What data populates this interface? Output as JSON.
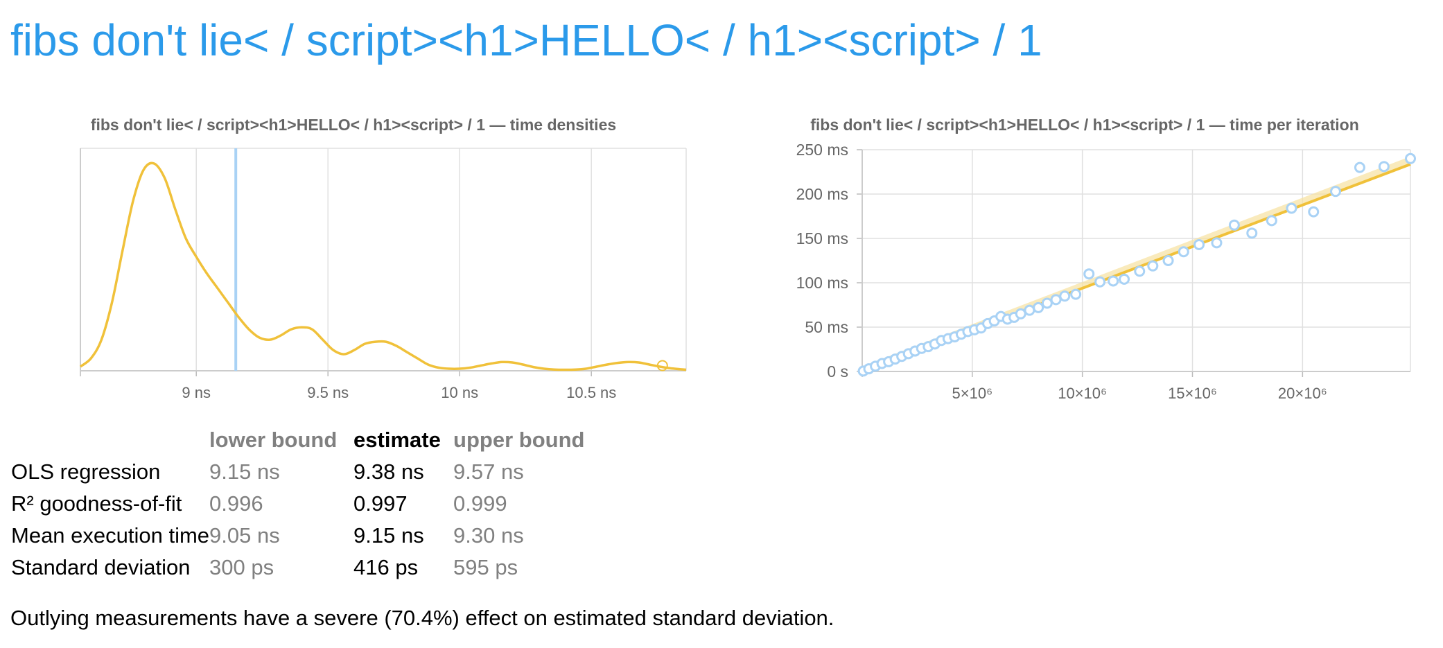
{
  "page": {
    "title": "fibs don't lie< / script><h1>HELLO< / h1><script> / 1",
    "outlier_note": "Outlying measurements have a severe (70.4%) effect on estimated standard deviation."
  },
  "colors": {
    "title": "#2b9aea",
    "density_line": "#f0c13a",
    "mean_marker": "#a9d2f5",
    "regression_line": "#f0c13a",
    "points": "#a9d2f5",
    "grid": "#e0e0e0",
    "axis_text": "#666666"
  },
  "chart_data": [
    {
      "type": "line",
      "title": "fibs don't lie< / script><h1>HELLO< / h1><script> / 1 — time densities",
      "xlabel": "",
      "ylabel": "",
      "x_unit": "ns",
      "xlim": [
        8.56,
        10.86
      ],
      "x_ticks": [
        9,
        9.5,
        10,
        10.5
      ],
      "x_tick_labels": [
        "9 ns",
        "9.5 ns",
        "10 ns",
        "10.5 ns"
      ],
      "y_axis_labels": false,
      "grid": true,
      "series": [
        {
          "x": [
            8.56,
            8.6,
            8.64,
            8.68,
            8.72,
            8.76,
            8.8,
            8.84,
            8.88,
            8.92,
            8.96,
            9.0,
            9.04,
            9.08,
            9.12,
            9.16,
            9.2,
            9.24,
            9.28,
            9.32,
            9.36,
            9.4,
            9.44,
            9.48,
            9.52,
            9.56,
            9.6,
            9.64,
            9.68,
            9.72,
            9.76,
            9.8,
            9.84,
            9.88,
            9.92,
            9.96,
            10.0,
            10.04,
            10.08,
            10.12,
            10.16,
            10.2,
            10.24,
            10.28,
            10.32,
            10.36,
            10.4,
            10.44,
            10.48,
            10.52,
            10.56,
            10.6,
            10.64,
            10.68,
            10.72,
            10.76,
            10.8,
            10.86
          ],
          "y": [
            0.02,
            0.06,
            0.15,
            0.33,
            0.58,
            0.82,
            0.97,
            1.0,
            0.93,
            0.78,
            0.64,
            0.55,
            0.47,
            0.4,
            0.33,
            0.26,
            0.2,
            0.16,
            0.15,
            0.17,
            0.2,
            0.21,
            0.2,
            0.15,
            0.1,
            0.08,
            0.1,
            0.13,
            0.14,
            0.14,
            0.12,
            0.09,
            0.06,
            0.03,
            0.015,
            0.01,
            0.01,
            0.015,
            0.025,
            0.035,
            0.042,
            0.04,
            0.03,
            0.018,
            0.01,
            0.006,
            0.005,
            0.006,
            0.01,
            0.02,
            0.03,
            0.038,
            0.042,
            0.04,
            0.03,
            0.02,
            0.012,
            0.005
          ]
        }
      ],
      "mean_marker_x": 9.15,
      "outlier_point": {
        "x": 10.77,
        "y": 0.025
      }
    },
    {
      "type": "scatter",
      "title": "fibs don't lie< / script><h1>HELLO< / h1><script> / 1 — time per iteration",
      "xlabel": "",
      "ylabel": "",
      "xlim": [
        0,
        24900000
      ],
      "ylim": [
        0,
        250
      ],
      "x_ticks": [
        5000000,
        10000000,
        15000000,
        20000000
      ],
      "x_tick_labels": [
        "5×10⁶",
        "10×10⁶",
        "15×10⁶",
        "20×10⁶"
      ],
      "y_ticks": [
        0,
        50,
        100,
        150,
        200,
        250
      ],
      "y_tick_labels": [
        "0 s",
        "50 ms",
        "100 ms",
        "150 ms",
        "200 ms",
        "250 ms"
      ],
      "grid": true,
      "regression": {
        "slope_ns_per_iter": 9.38,
        "x_range": [
          0,
          24900000
        ]
      },
      "points": {
        "x": [
          50000,
          300000,
          600000,
          900000,
          1200000,
          1500000,
          1800000,
          2100000,
          2400000,
          2700000,
          3000000,
          3300000,
          3600000,
          3900000,
          4200000,
          4500000,
          4800000,
          5100000,
          5400000,
          5700000,
          6000000,
          6300000,
          6600000,
          6900000,
          7200000,
          7600000,
          8000000,
          8400000,
          8800000,
          9200000,
          9700000,
          10300000,
          10800000,
          11400000,
          11900000,
          12600000,
          13200000,
          13900000,
          14600000,
          15300000,
          16100000,
          16900000,
          17700000,
          18600000,
          19500000,
          20500000,
          21500000,
          22600000,
          23700000,
          24900000
        ],
        "y": [
          0.5,
          3,
          6,
          9,
          11,
          14,
          17,
          20,
          23,
          26,
          28,
          31,
          35,
          37,
          39,
          42,
          45,
          47,
          49,
          54,
          57,
          62,
          59,
          61,
          65,
          69,
          72,
          77,
          81,
          85,
          87,
          110,
          101,
          102,
          104,
          113,
          119,
          125,
          135,
          143,
          145,
          165,
          156,
          170,
          184,
          180,
          203,
          230,
          231,
          240
        ]
      }
    }
  ],
  "stats": {
    "headers": {
      "name": "",
      "lower": "lower bound",
      "estimate": "estimate",
      "upper": "upper bound"
    },
    "rows": [
      {
        "name": "OLS regression",
        "lower": "9.15 ns",
        "estimate": "9.38 ns",
        "upper": "9.57 ns"
      },
      {
        "name": "R² goodness-of-fit",
        "lower": "0.996",
        "estimate": "0.997",
        "upper": "0.999"
      },
      {
        "name": "Mean execution time",
        "lower": "9.05 ns",
        "estimate": "9.15 ns",
        "upper": "9.30 ns"
      },
      {
        "name": "Standard deviation",
        "lower": "300 ps",
        "estimate": "416 ps",
        "upper": "595 ps"
      }
    ]
  }
}
